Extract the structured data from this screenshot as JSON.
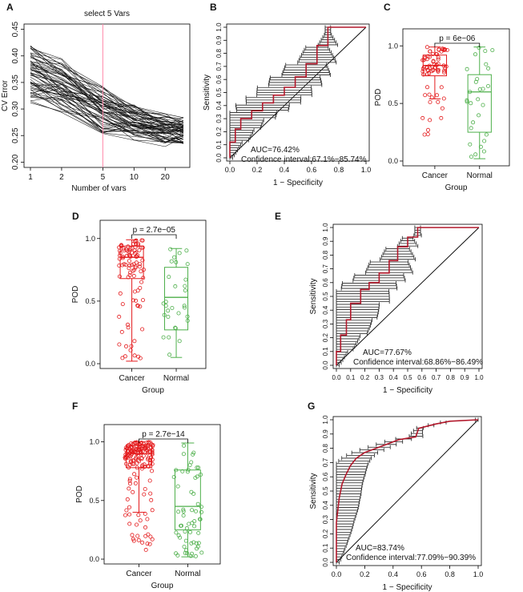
{
  "panel_labels": [
    "A",
    "B",
    "C",
    "D",
    "E",
    "F",
    "G"
  ],
  "colors": {
    "cancer": "#e41a1c",
    "normal": "#4daf4a",
    "roc": "#b2182b",
    "ci": "#222222",
    "ref": "#ff88aa"
  },
  "chart_data": [
    {
      "panel": "A",
      "type": "line",
      "title": "select 5 Vars",
      "xlabel": "Number of vars",
      "ylabel": "CV Error",
      "x_ticks": [
        "1",
        "2",
        "5",
        "10",
        "20"
      ],
      "y_ticks": [
        "0.20",
        "0.25",
        "0.30",
        "0.35",
        "0.40",
        "0.45"
      ],
      "ylim": [
        0.19,
        0.46
      ],
      "selected_vars": 5,
      "n_series": 60,
      "mean_profile": [
        [
          1,
          0.368
        ],
        [
          2,
          0.345
        ],
        [
          5,
          0.3
        ],
        [
          10,
          0.276
        ],
        [
          20,
          0.262
        ],
        [
          30,
          0.258
        ]
      ]
    },
    {
      "panel": "B",
      "type": "line",
      "xlabel": "1 − Specificity",
      "ylabel": "Sensitivity",
      "x_ticks": [
        "0.0",
        "0.2",
        "0.4",
        "0.6",
        "0.8",
        "1.0"
      ],
      "y_ticks": [
        "0.0",
        "0.1",
        "0.2",
        "0.3",
        "0.4",
        "0.5",
        "0.6",
        "0.7",
        "0.8",
        "0.9",
        "1.0"
      ],
      "auc_text": "AUC=76.42%",
      "ci_text": "Confidence interval:67.1%−85.74%",
      "roc_x": [
        0,
        0,
        0.04,
        0.04,
        0.08,
        0.08,
        0.16,
        0.16,
        0.24,
        0.24,
        0.32,
        0.32,
        0.4,
        0.4,
        0.48,
        0.48,
        0.56,
        0.56,
        0.64,
        0.64,
        0.72,
        0.72,
        1.0
      ],
      "roc_y": [
        0,
        0.12,
        0.12,
        0.22,
        0.22,
        0.3,
        0.3,
        0.36,
        0.36,
        0.42,
        0.42,
        0.48,
        0.48,
        0.54,
        0.54,
        0.62,
        0.62,
        0.72,
        0.72,
        0.86,
        0.86,
        1.0,
        1.0
      ],
      "ci_width": 0.26
    },
    {
      "panel": "C",
      "type": "scatter",
      "xlabel": "Group",
      "ylabel": "POD",
      "categories": [
        "Cancer",
        "Normal"
      ],
      "y_ticks": [
        "0.0",
        "0.5",
        "1.0"
      ],
      "ylim": [
        0,
        1.12
      ],
      "pvalue": "p = 6e−06",
      "boxes": [
        {
          "group": "Cancer",
          "min": 0.54,
          "q1": 0.74,
          "median": 0.83,
          "q3": 0.92,
          "max": 0.99,
          "n": 70,
          "jmin": 0.21
        },
        {
          "group": "Normal",
          "min": 0.02,
          "q1": 0.25,
          "median": 0.6,
          "q3": 0.75,
          "max": 0.99,
          "n": 28,
          "jmin": 0.02
        }
      ]
    },
    {
      "panel": "D",
      "type": "scatter",
      "xlabel": "Group",
      "ylabel": "POD",
      "categories": [
        "Cancer",
        "Normal"
      ],
      "y_ticks": [
        "0.0",
        "0.5",
        "1.0"
      ],
      "ylim": [
        0,
        1.12
      ],
      "pvalue": "p = 2.7e−05",
      "boxes": [
        {
          "group": "Cancer",
          "min": 0.02,
          "q1": 0.68,
          "median": 0.85,
          "q3": 0.94,
          "max": 0.99,
          "n": 95,
          "jmin": 0.02
        },
        {
          "group": "Normal",
          "min": 0.05,
          "q1": 0.27,
          "median": 0.53,
          "q3": 0.77,
          "max": 0.92,
          "n": 30,
          "jmin": 0.05
        }
      ]
    },
    {
      "panel": "E",
      "type": "line",
      "xlabel": "1 − Specificity",
      "ylabel": "Sensitivity",
      "x_ticks": [
        "0.0",
        "0.1",
        "0.2",
        "0.3",
        "0.4",
        "0.5",
        "0.6",
        "0.7",
        "0.8",
        "0.9",
        "1.0"
      ],
      "y_ticks": [
        "0.0",
        "0.1",
        "0.2",
        "0.3",
        "0.4",
        "0.5",
        "0.6",
        "0.7",
        "0.8",
        "0.9",
        "1.0"
      ],
      "auc_text": "AUC=77.67%",
      "ci_text": "Confidence interval:68.86%−86.49%",
      "roc_x": [
        0,
        0,
        0.03,
        0.03,
        0.07,
        0.07,
        0.1,
        0.1,
        0.17,
        0.17,
        0.23,
        0.23,
        0.3,
        0.3,
        0.37,
        0.37,
        0.43,
        0.43,
        0.5,
        0.5,
        0.57,
        0.57,
        1.0
      ],
      "roc_y": [
        0,
        0.1,
        0.1,
        0.22,
        0.22,
        0.33,
        0.33,
        0.45,
        0.45,
        0.55,
        0.55,
        0.6,
        0.6,
        0.67,
        0.67,
        0.76,
        0.76,
        0.86,
        0.86,
        0.93,
        0.93,
        1.0,
        1.0
      ],
      "ci_width": 0.26
    },
    {
      "panel": "F",
      "type": "scatter",
      "xlabel": "Group",
      "ylabel": "POD",
      "categories": [
        "Cancer",
        "Normal"
      ],
      "y_ticks": [
        "0.0",
        "0.5",
        "1.0"
      ],
      "ylim": [
        0,
        1.12
      ],
      "pvalue": "p = 2.7e−14",
      "boxes": [
        {
          "group": "Cancer",
          "min": 0.4,
          "q1": 0.78,
          "median": 0.9,
          "q3": 0.97,
          "max": 1.0,
          "n": 160,
          "jmin": 0.06
        },
        {
          "group": "Normal",
          "min": 0.02,
          "q1": 0.25,
          "median": 0.45,
          "q3": 0.76,
          "max": 0.99,
          "n": 60,
          "jmin": 0.02
        }
      ]
    },
    {
      "panel": "G",
      "type": "line",
      "xlabel": "1 − Specificity",
      "ylabel": "Sensitivity",
      "x_ticks": [
        "0.0",
        "0.2",
        "0.4",
        "0.6",
        "0.8",
        "1.0"
      ],
      "y_ticks": [
        "0.0",
        "0.1",
        "0.2",
        "0.3",
        "0.4",
        "0.5",
        "0.6",
        "0.7",
        "0.8",
        "0.9",
        "1.0"
      ],
      "auc_text": "AUC=83.74%",
      "ci_text": "Confidence interval:77.09%−90.39%",
      "roc_x": [
        0,
        0,
        0.02,
        0.04,
        0.07,
        0.1,
        0.14,
        0.2,
        0.28,
        0.36,
        0.44,
        0.5,
        0.56,
        0.58,
        0.7,
        0.8,
        1.0
      ],
      "roc_y": [
        0,
        0.28,
        0.45,
        0.55,
        0.62,
        0.68,
        0.73,
        0.77,
        0.8,
        0.83,
        0.86,
        0.87,
        0.88,
        0.94,
        0.97,
        0.99,
        1.0
      ],
      "ci_width": 0.18
    }
  ]
}
